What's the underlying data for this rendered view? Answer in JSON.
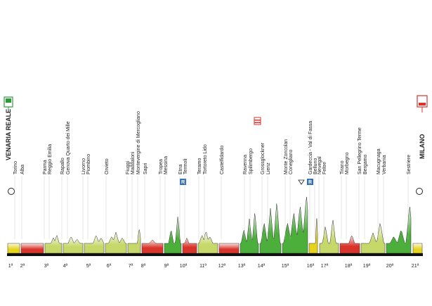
{
  "start_label": "VENARIA REALE",
  "finish_label": "MILANO",
  "places": [
    "Torino",
    "Alba",
    "Parma",
    "Reggio Emilia",
    "Rapallo",
    "Genova Quarto dei Mille",
    "Livorno",
    "Piombino",
    "Orvieto",
    "Fiuggi",
    "Maddaloni",
    "Montevergine di Mercogliano",
    "Sapri",
    "Tropea",
    "Messina",
    "Etna",
    "Termoli",
    "Teramo",
    "Tortoreto Lido",
    "Castelfidardo",
    "Ravenna",
    "Spilimbergo",
    "Grossglockner",
    "Lienz",
    "Monte Zoncolan",
    "Conegliano",
    "Gardeccia - Val di Fassa",
    "Belluno",
    "Nevegal",
    "Feltre",
    "Tirano",
    "Morbegno",
    "San Pellegrino Terme",
    "Bergamo",
    "Macugnaga",
    "Verbania",
    "Sestriere"
  ],
  "stages": [
    "1ª",
    "2ª",
    "3ª",
    "4ª",
    "5ª",
    "6ª",
    "7ª",
    "8ª",
    "9ª",
    "10ª",
    "11ª",
    "12ª",
    "13ª",
    "14ª",
    "15ª",
    "16ª",
    "17ª",
    "18ª",
    "19ª",
    "20ª",
    "21ª"
  ]
}
